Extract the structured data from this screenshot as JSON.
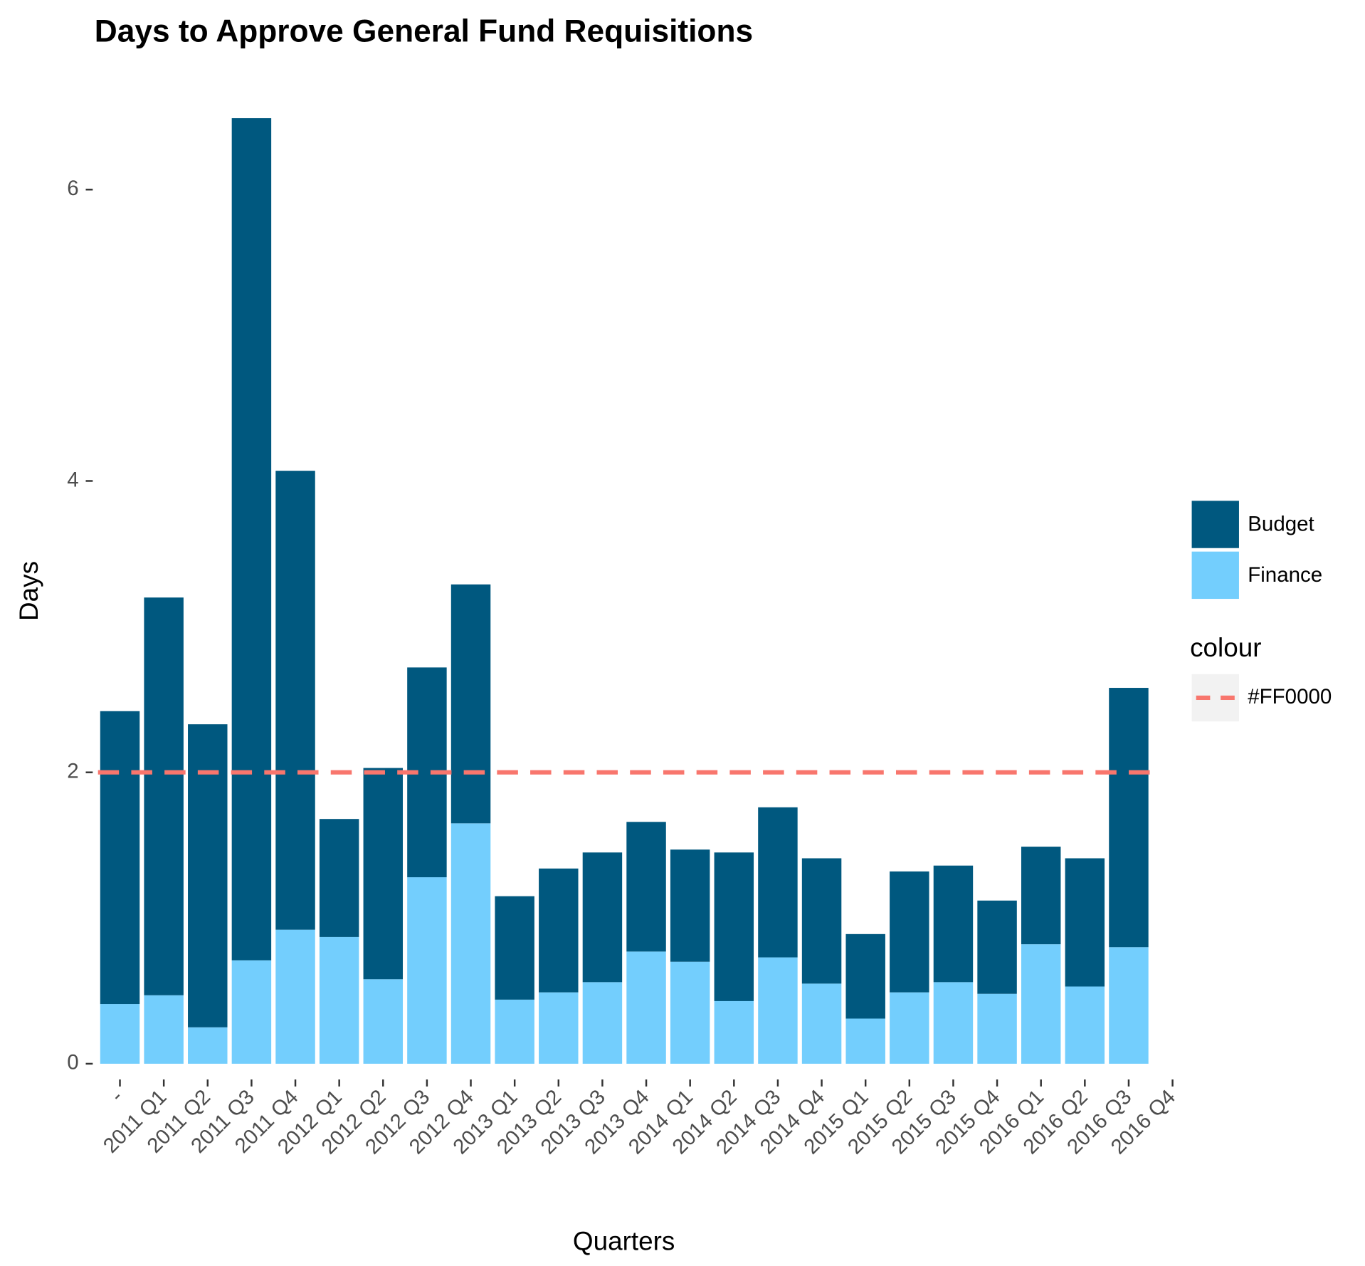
{
  "chart_data": {
    "type": "bar",
    "stacked": true,
    "title": "Days to Approve General Fund Requisitions",
    "x_label": "Quarters",
    "y_label": "Days",
    "categories": [
      "-",
      "2011 Q1",
      "2011 Q2",
      "2011 Q3",
      "2011 Q4",
      "2012 Q1",
      "2012 Q2",
      "2012 Q3",
      "2012 Q4",
      "2013 Q1",
      "2013 Q2",
      "2013 Q3",
      "2013 Q4",
      "2014 Q1",
      "2014 Q2",
      "2014 Q3",
      "2014 Q4",
      "2015 Q1",
      "2015 Q2",
      "2015 Q3",
      "2015 Q4",
      "2016 Q1",
      "2016 Q2",
      "2016 Q3",
      "2016 Q4"
    ],
    "series": [
      {
        "name": "Finance",
        "color": "#73cefd",
        "values": [
          0.41,
          0.47,
          0.25,
          0.71,
          0.92,
          0.87,
          0.58,
          1.28,
          1.65,
          0.44,
          0.49,
          0.56,
          0.77,
          0.7,
          0.43,
          0.73,
          0.55,
          0.31,
          0.49,
          0.56,
          0.48,
          0.82,
          0.53,
          0.8,
          null
        ]
      },
      {
        "name": "Budget",
        "color": "#00587f",
        "values": [
          2.01,
          2.73,
          2.08,
          5.78,
          3.15,
          0.81,
          1.45,
          1.44,
          1.64,
          0.71,
          0.85,
          0.89,
          0.89,
          0.77,
          1.02,
          1.03,
          0.86,
          0.58,
          0.83,
          0.8,
          0.64,
          0.67,
          0.88,
          1.78,
          null
        ]
      }
    ],
    "reference_line": {
      "value": 2,
      "color": "#F8766D",
      "name": "#FF0000"
    },
    "legend_title": "colour",
    "ylim": [
      -0.09,
      6.7
    ],
    "yticks": [
      0,
      2,
      4,
      6
    ]
  }
}
